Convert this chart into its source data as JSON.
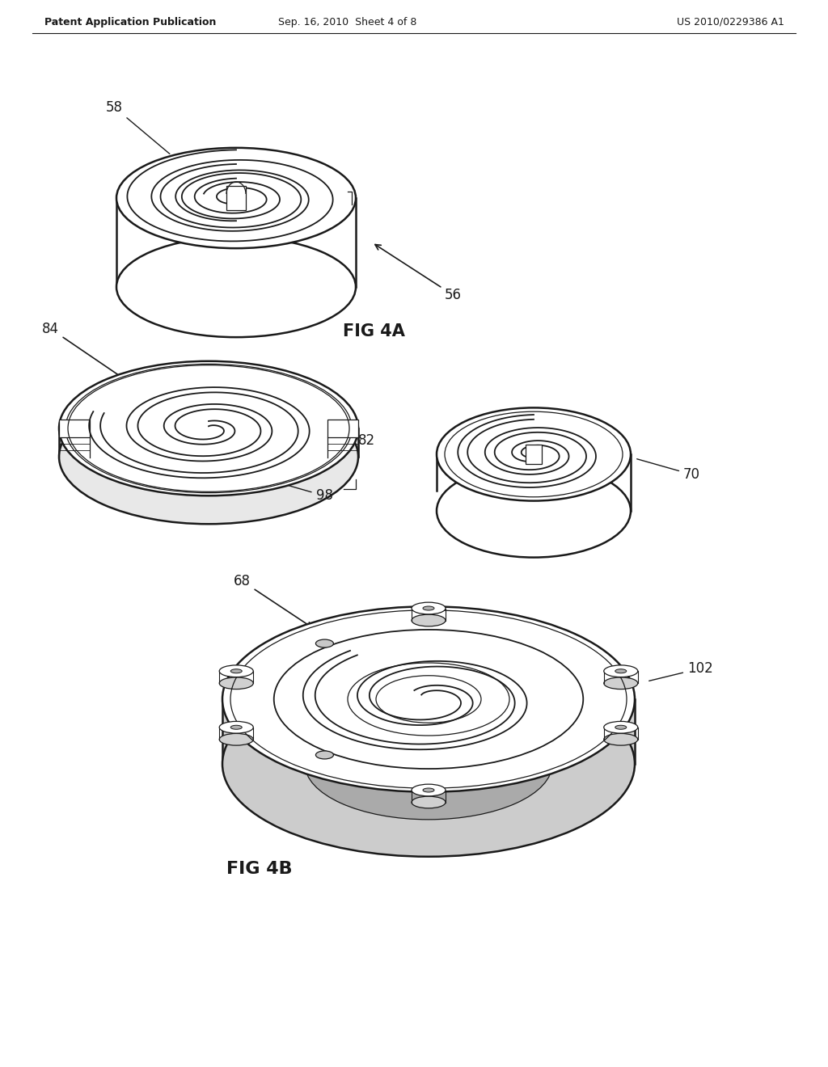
{
  "bg_color": "#ffffff",
  "line_color": "#1a1a1a",
  "header_left": "Patent Application Publication",
  "header_center": "Sep. 16, 2010  Sheet 4 of 8",
  "header_right": "US 2010/0229386 A1",
  "fig4a_label": "FIG 4A",
  "fig4b_label": "FIG 4B"
}
